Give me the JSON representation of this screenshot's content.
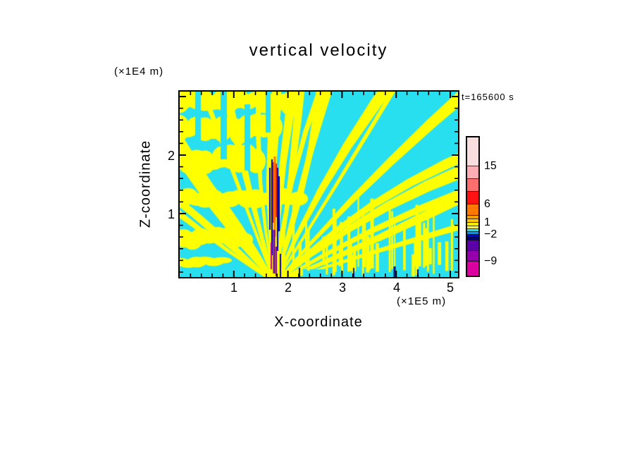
{
  "chart_data": {
    "type": "heatmap",
    "title": "vertical velocity",
    "time_label": "t=165600 s",
    "xlabel": "X-coordinate",
    "x_unit_label": "(×1E5 m)",
    "ylabel": "Z-coordinate",
    "y_unit_label": "(×1E4 m)",
    "x_ticks": [
      "1",
      "2",
      "3",
      "4",
      "5"
    ],
    "x_tick_values": [
      1,
      2,
      3,
      4,
      5
    ],
    "y_ticks": [
      "2",
      "1"
    ],
    "y_tick_values": [
      2,
      1
    ],
    "x_range": [
      0,
      5.15
    ],
    "y_range": [
      0,
      3.15
    ],
    "grid": false,
    "legend_position": "right-colorbar",
    "colorbar": {
      "tick_values": [
        15,
        6,
        1,
        -2,
        -9
      ],
      "labels": [
        {
          "text": "15"
        },
        {
          "text": "6"
        },
        {
          "text": "1"
        },
        {
          "text": "−2"
        },
        {
          "text": "−9"
        }
      ],
      "segments": [
        {
          "color": "#F8DEDE",
          "h": 41
        },
        {
          "color": "#FFAEB6",
          "h": 18
        },
        {
          "color": "#FF6E6E",
          "h": 18
        },
        {
          "color": "#FF1212",
          "h": 18
        },
        {
          "color": "#FF7800",
          "h": 16
        },
        {
          "color": "#FFA000",
          "h": 5
        },
        {
          "color": "#FFC800",
          "h": 5
        },
        {
          "color": "#FFEC00",
          "h": 5
        },
        {
          "color": "#FFFF40",
          "h": 4
        },
        {
          "color": "#28DFF0",
          "h": 4
        },
        {
          "color": "#0090FF",
          "h": 4
        },
        {
          "color": "#0000E8",
          "h": 4
        },
        {
          "color": "#000088",
          "h": 4
        },
        {
          "color": "#5C00A8",
          "h": 15
        },
        {
          "color": "#9400AC",
          "h": 15
        },
        {
          "color": "#DC00A0",
          "h": 20
        }
      ]
    },
    "field": {
      "background_color": "#28DFF0",
      "streak_color": "#FFFF00",
      "source_x_value": 1.75,
      "seed": 9,
      "rays": 30,
      "angle_start": 214,
      "angle_end": 342,
      "focus": {
        "x": 135,
        "y": 272
      },
      "vstreaks": 44,
      "left_bands": [
        {
          "x0": 0,
          "x1": 158,
          "y": 14,
          "r": 13
        },
        {
          "x0": 0,
          "x1": 140,
          "y": 52,
          "r": 15
        },
        {
          "x0": 0,
          "x1": 118,
          "y": 96,
          "r": 14
        },
        {
          "x0": 0,
          "x1": 168,
          "y": 150,
          "r": 11
        },
        {
          "x0": 6,
          "x1": 100,
          "y": 207,
          "r": 10
        },
        {
          "x0": 0,
          "x1": 70,
          "y": 243,
          "r": 6
        }
      ],
      "gap_columns": [
        {
          "x": 22,
          "y0": 0,
          "y1": 72,
          "w": 8
        },
        {
          "x": 58,
          "y0": 0,
          "y1": 96,
          "w": 9
        },
        {
          "x": 92,
          "y0": 18,
          "y1": 112,
          "w": 8
        },
        {
          "x": 122,
          "y0": 0,
          "y1": 58,
          "w": 7
        }
      ],
      "core_strokes": [
        {
          "x": 128,
          "y1": 108,
          "y2": 196,
          "w": 2,
          "color": "#0000E0"
        },
        {
          "x": 131,
          "y1": 96,
          "y2": 232,
          "w": 2,
          "color": "#000090"
        },
        {
          "x": 133,
          "y1": 100,
          "y2": 186,
          "w": 2,
          "color": "#FF3000"
        },
        {
          "x": 135,
          "y1": 92,
          "y2": 206,
          "w": 3,
          "color": "#FF7700"
        },
        {
          "x": 137,
          "y1": 102,
          "y2": 178,
          "w": 2,
          "color": "#FF2000"
        },
        {
          "x": 139,
          "y1": 108,
          "y2": 226,
          "w": 2,
          "color": "#0000C0"
        },
        {
          "x": 141,
          "y1": 120,
          "y2": 198,
          "w": 2,
          "color": "#000080"
        },
        {
          "x": 134,
          "y1": 196,
          "y2": 258,
          "w": 3,
          "color": "#6A00A8"
        },
        {
          "x": 130,
          "y1": 214,
          "y2": 252,
          "w": 2,
          "color": "#C000A0"
        },
        {
          "x": 137,
          "y1": 220,
          "y2": 262,
          "w": 2,
          "color": "#8800A8"
        },
        {
          "x": 143,
          "y1": 230,
          "y2": 263,
          "w": 2,
          "color": "#0000B0"
        },
        {
          "x": 170,
          "y1": 250,
          "y2": 263,
          "w": 2,
          "color": "#001070"
        },
        {
          "x": 247,
          "y1": 250,
          "y2": 263,
          "w": 2,
          "color": "#002080"
        },
        {
          "x": 305,
          "y1": 248,
          "y2": 263,
          "w": 3,
          "color": "#001070"
        },
        {
          "x": 338,
          "y1": 252,
          "y2": 263,
          "w": 2,
          "color": "#001070"
        }
      ]
    }
  }
}
